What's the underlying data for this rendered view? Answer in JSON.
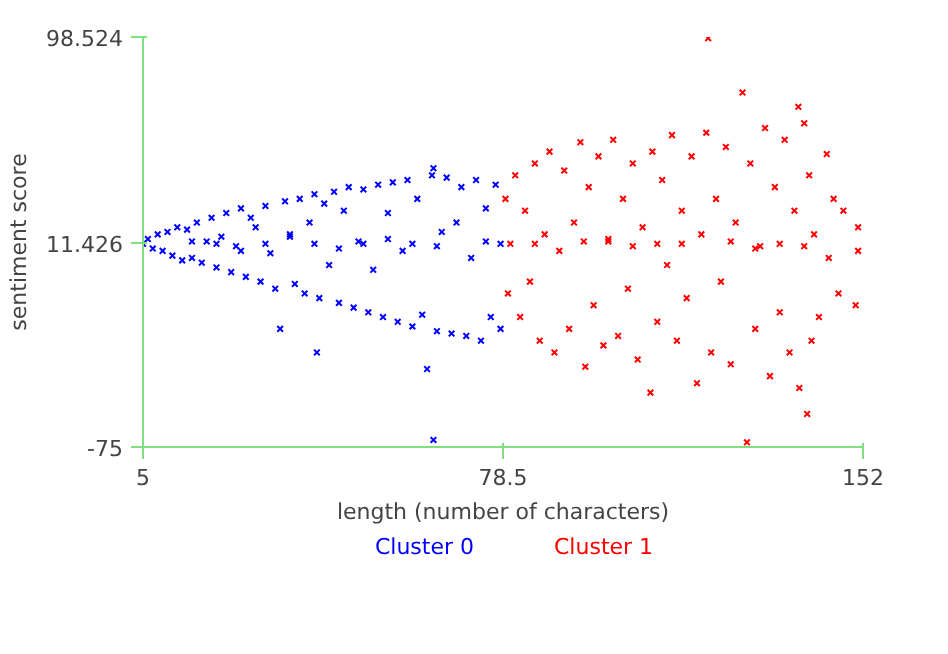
{
  "chart_data": {
    "type": "scatter",
    "xlabel": "length (number of characters)",
    "ylabel": "sentiment score",
    "xlim": [
      5,
      152
    ],
    "ylim": [
      -75,
      98.524
    ],
    "xticks": [
      5,
      78.5,
      152
    ],
    "yticks": [
      -75,
      11.426,
      98.524
    ],
    "grid": false,
    "marker": "cross",
    "series": [
      {
        "name": "Cluster 0",
        "color": "#0000ff",
        "x": [
          5,
          6,
          7,
          8,
          9,
          10,
          11,
          12,
          13,
          14,
          15,
          16,
          17,
          18,
          19,
          20,
          21,
          22,
          23,
          24,
          25,
          26,
          27,
          28,
          29,
          30,
          31,
          32,
          33,
          34,
          35,
          36,
          37,
          38,
          39,
          40,
          40.5,
          41,
          42,
          43,
          44,
          45,
          46,
          47,
          48,
          49,
          50,
          51,
          52,
          53,
          54,
          55,
          56,
          57,
          58,
          59,
          60,
          61,
          62,
          63,
          64,
          64.3,
          64.3,
          65,
          66,
          67,
          68,
          69,
          70,
          71,
          72,
          73,
          74,
          75,
          76,
          77,
          78,
          78,
          60,
          50,
          40,
          30,
          20,
          15,
          45,
          55,
          65,
          75,
          35,
          25
        ],
        "values": [
          11,
          13,
          9,
          15,
          8,
          16,
          6,
          18,
          4,
          17,
          5,
          20,
          3,
          12,
          22,
          1,
          14,
          24,
          -1,
          10,
          26,
          -3,
          22,
          18,
          -5,
          27,
          7,
          -8,
          -25,
          29,
          15,
          -6,
          30,
          -10,
          20,
          32,
          -35,
          -12,
          28,
          2,
          33,
          -14,
          25,
          35,
          -16,
          12,
          34,
          -18,
          0,
          36,
          -20,
          24,
          37,
          -22,
          8,
          38,
          -24,
          30,
          -19,
          -42,
          40,
          43,
          -72,
          -26,
          16,
          39,
          -27,
          20,
          35,
          -28,
          5,
          38,
          -30,
          26,
          -20,
          36,
          -25,
          11,
          11,
          11,
          11,
          11,
          11,
          12,
          9,
          13,
          10,
          12,
          14,
          8
        ]
      },
      {
        "name": "Cluster 1",
        "color": "#ff0000",
        "x": [
          79,
          79.5,
          80,
          81,
          82,
          83,
          84,
          85,
          86,
          87,
          88,
          89,
          90,
          91,
          92,
          93,
          94.3,
          95.3,
          96,
          97,
          98,
          99,
          100,
          101,
          102,
          103,
          104,
          105,
          106,
          107,
          108.6,
          109,
          110,
          111,
          112,
          113,
          114,
          115,
          116,
          117,
          118.1,
          119,
          120,
          120.4,
          121,
          122,
          123,
          124,
          125,
          126,
          127.4,
          128.3,
          129,
          130,
          131,
          132,
          133,
          134,
          135,
          136,
          137,
          138,
          138.8,
          139,
          140,
          140.6,
          141,
          141.5,
          142,
          143,
          144.6,
          145,
          146,
          147,
          148,
          150.5,
          151,
          151,
          85,
          95,
          105,
          115,
          125,
          135,
          140,
          110,
          130,
          100
        ],
        "values": [
          30,
          -10,
          11,
          40,
          -20,
          25,
          -5,
          45,
          -30,
          15,
          50,
          -35,
          8,
          42,
          -25,
          20,
          54,
          -41,
          35,
          -15,
          48,
          -32,
          12,
          55,
          -28,
          30,
          -8,
          45,
          -38,
          18,
          -52,
          50,
          -22,
          38,
          2,
          57,
          -30,
          25,
          -12,
          48,
          -48,
          15,
          58,
          98,
          -35,
          30,
          -5,
          52,
          -40,
          20,
          75,
          -73,
          45,
          -25,
          10,
          60,
          -45,
          35,
          -18,
          55,
          -35,
          25,
          69,
          -50,
          62,
          -61,
          40,
          -30,
          15,
          -20,
          49,
          5,
          30,
          -10,
          25,
          -15,
          18,
          8,
          11,
          12,
          10,
          11,
          12,
          11,
          10,
          11,
          9,
          13
        ]
      }
    ]
  }
}
